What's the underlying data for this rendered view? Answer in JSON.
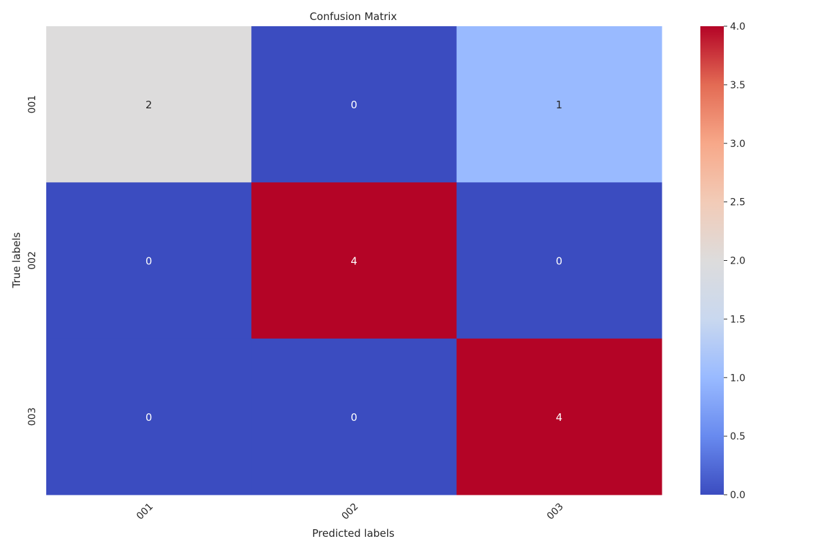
{
  "chart_data": {
    "type": "heatmap",
    "title": "Confusion Matrix",
    "xlabel": "Predicted labels",
    "ylabel": "True labels",
    "x_categories": [
      "001",
      "002",
      "003"
    ],
    "y_categories": [
      "001",
      "002",
      "003"
    ],
    "values": [
      [
        2,
        0,
        1
      ],
      [
        0,
        4,
        0
      ],
      [
        0,
        0,
        4
      ]
    ],
    "colormap": "coolwarm",
    "colormap_stops": [
      "#3b4cc0",
      "#688aef",
      "#99baff",
      "#c9d8ef",
      "#dddcdc",
      "#f2cbb7",
      "#f7a889",
      "#e36b54",
      "#b40426"
    ],
    "colorbar": {
      "min": 0.0,
      "max": 4.0,
      "ticks": [
        "0.0",
        "0.5",
        "1.0",
        "1.5",
        "2.0",
        "2.5",
        "3.0",
        "3.5",
        "4.0"
      ]
    },
    "annotations": true,
    "grid": false
  }
}
